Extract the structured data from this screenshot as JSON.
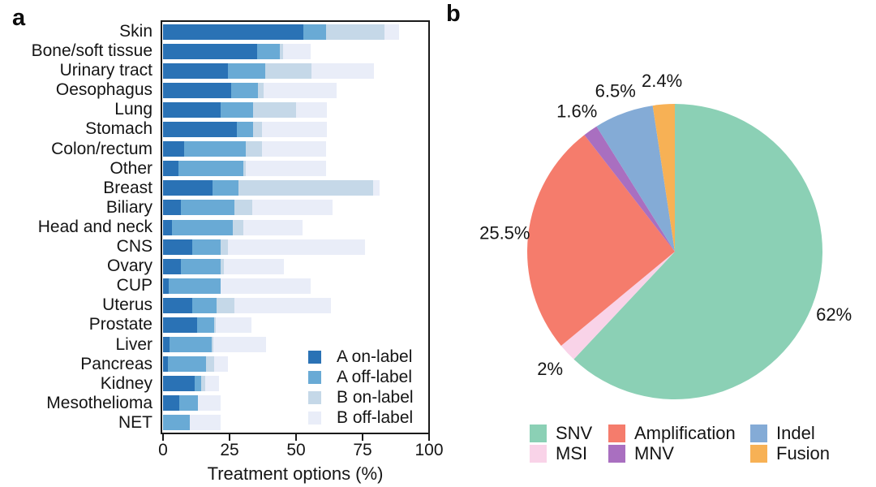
{
  "panels": {
    "a": {
      "label": "a"
    },
    "b": {
      "label": "b"
    }
  },
  "chart_data": [
    {
      "type": "bar",
      "orientation": "horizontal",
      "stacked": true,
      "xlabel": "Treatment options (%)",
      "xlim": [
        0,
        100
      ],
      "xticks": [
        "0",
        "25",
        "50",
        "75",
        "100"
      ],
      "grid": false,
      "legend_position": "inside lower right",
      "categories": [
        "Skin",
        "Bone/soft tissue",
        "Urinary tract",
        "Oesophagus",
        "Lung",
        "Stomach",
        "Colon/rectum",
        "Other",
        "Breast",
        "Biliary",
        "Head and neck",
        "CNS",
        "Ovary",
        "CUP",
        "Uterus",
        "Prostate",
        "Liver",
        "Pancreas",
        "Kidney",
        "Mesothelioma",
        "NET"
      ],
      "series": [
        {
          "name": "A on-label",
          "color": "#2a72b5",
          "values": [
            52.7,
            35.5,
            24.4,
            25.6,
            21.7,
            27.7,
            8.0,
            5.8,
            18.5,
            6.8,
            3.3,
            11.1,
            6.8,
            2.0,
            10.9,
            12.9,
            2.4,
            1.7,
            11.9,
            6.1,
            0
          ]
        },
        {
          "name": "A off-label",
          "color": "#69aad5",
          "values": [
            8.7,
            8.4,
            13.9,
            10.2,
            12.2,
            6.2,
            23.2,
            24.4,
            9.9,
            20.1,
            22.8,
            10.6,
            14.8,
            19.7,
            9.1,
            6.3,
            15.8,
            14.6,
            2.5,
            7.1,
            10.2
          ]
        },
        {
          "name": "B on-label",
          "color": "#c5d8e8",
          "values": [
            21.9,
            1.2,
            17.6,
            2.0,
            16.1,
            3.4,
            6.1,
            1.0,
            50.6,
            6.6,
            4.1,
            2.6,
            1.3,
            0,
            6.8,
            0.5,
            0.8,
            2.9,
            1.4,
            0,
            0
          ]
        },
        {
          "name": "B off-label",
          "color": "#e9edf8",
          "values": [
            5.3,
            10.5,
            23.3,
            27.4,
            11.7,
            24.4,
            23.9,
            30.0,
            2.5,
            30.2,
            22.1,
            51.6,
            22.5,
            33.9,
            36.4,
            13.5,
            19.8,
            5.2,
            5.2,
            8.4,
            11.4
          ]
        }
      ]
    },
    {
      "type": "pie",
      "direction": "clockwise",
      "start_angle": "12-oclock",
      "slices": [
        {
          "label": "SNV",
          "value": 62,
          "display": "62%",
          "color": "#8bd0b5"
        },
        {
          "label": "MSI",
          "value": 2,
          "display": "2%",
          "color": "#f9d3e8"
        },
        {
          "label": "Amplification",
          "value": 25.5,
          "display": "25.5%",
          "color": "#f57c6c"
        },
        {
          "label": "MNV",
          "value": 1.6,
          "display": "1.6%",
          "color": "#a96fc0"
        },
        {
          "label": "Indel",
          "value": 6.5,
          "display": "6.5%",
          "color": "#84abd6"
        },
        {
          "label": "Fusion",
          "value": 2.4,
          "display": "2.4%",
          "color": "#f7b155"
        }
      ],
      "legend_columns": [
        [
          "SNV",
          "MSI"
        ],
        [
          "Amplification",
          "MNV"
        ],
        [
          "Indel",
          "Fusion"
        ]
      ]
    }
  ]
}
